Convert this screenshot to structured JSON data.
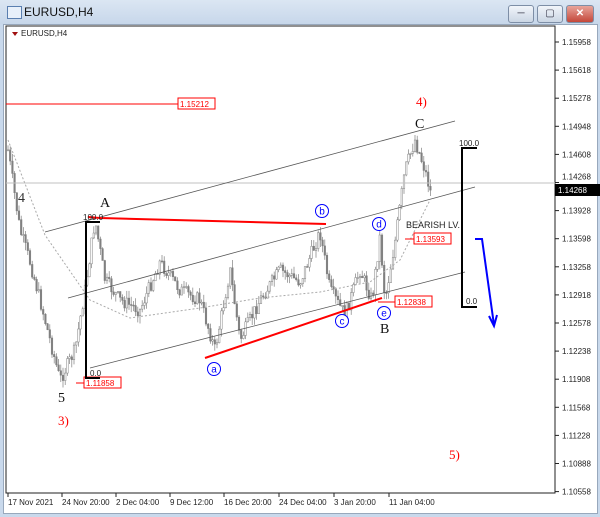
{
  "window": {
    "title": "EURUSD,H4",
    "buttons": [
      "minimize",
      "maximize",
      "close"
    ]
  },
  "chart_data": {
    "type": "candlestick",
    "symbol_label": "EURUSD,H4",
    "y_ticks": [
      "1.15958",
      "1.15618",
      "1.15278",
      "1.14948",
      "1.14608",
      "1.14268",
      "1.13928",
      "1.13598",
      "1.13258",
      "1.12918",
      "1.12578",
      "1.12238",
      "1.11908",
      "1.11568",
      "1.11228",
      "1.10888",
      "1.10558"
    ],
    "current_price": "1.14268",
    "x_ticks": [
      "17 Nov 2021",
      "24 Nov 20:00",
      "2 Dec 04:00",
      "9 Dec 12:00",
      "16 Dec 20:00",
      "24 Dec 04:00",
      "3 Jan 20:00",
      "11 Jan 04:00"
    ],
    "price_labels": {
      "level_1": "1.15212",
      "level_2": "1.13593",
      "level_3": "1.12838",
      "level_4": "1.11858"
    },
    "wave_labels": {
      "w4": "4",
      "w5": "5",
      "w3": "3)",
      "w4big": "4)",
      "w5big": "5)",
      "A": "A",
      "B": "B",
      "C": "C",
      "a": "a",
      "b": "b",
      "c": "c",
      "d": "d",
      "e": "e"
    },
    "fib_labels": {
      "left_top": "100.0",
      "left_bottom": "0.0",
      "right_top": "100.0",
      "right_bottom": "0.0"
    },
    "annotation": "BEARISH LV.",
    "colors": {
      "candles": "#808080",
      "red": "#ff0000",
      "blue": "#0000ff",
      "grid": "#c0c0c0"
    }
  }
}
